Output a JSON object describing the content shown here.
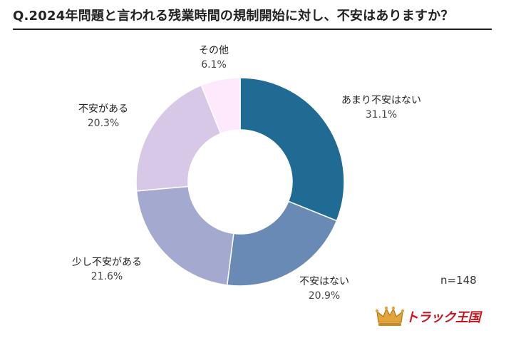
{
  "title": "Q.2024年問題と言われる残業時間の規制開始に対し、不安はありますか？",
  "note": "n=148",
  "brand": {
    "logo_text": "トラック王国",
    "color": "#c8141e"
  },
  "chart_data": {
    "type": "pie",
    "variant": "donut",
    "categories": [
      "あまり不安はない",
      "不安はない",
      "少し不安がある",
      "不安がある",
      "その他"
    ],
    "values": [
      31.1,
      20.9,
      21.6,
      20.3,
      6.1
    ],
    "value_labels": [
      "31.1%",
      "20.9%",
      "21.6%",
      "20.3%",
      "6.1%"
    ],
    "colors": [
      "#1f6b94",
      "#6a8ab6",
      "#a4a9d0",
      "#d6c8e6",
      "#fde9fb"
    ],
    "start_angle_deg": 0,
    "direction": "clockwise"
  }
}
